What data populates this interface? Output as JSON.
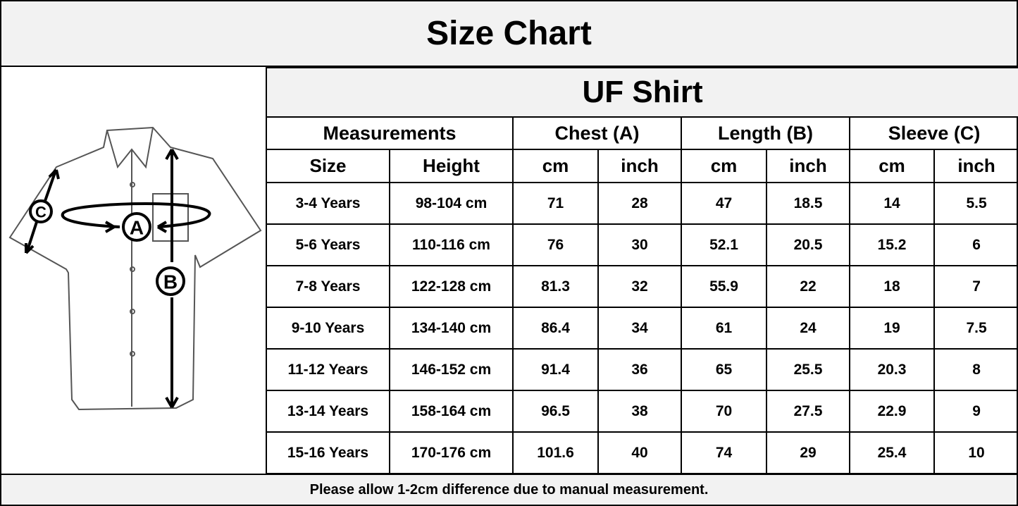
{
  "title": "Size Chart",
  "diagram": {
    "labels": [
      "A",
      "B",
      "C"
    ]
  },
  "table": {
    "title": "UF Shirt",
    "groups": [
      "Measurements",
      "Chest (A)",
      "Length (B)",
      "Sleeve (C)"
    ],
    "columns": [
      "Size",
      "Height",
      "cm",
      "inch",
      "cm",
      "inch",
      "cm",
      "inch"
    ],
    "rows": [
      [
        "3-4 Years",
        "98-104 cm",
        "71",
        "28",
        "47",
        "18.5",
        "14",
        "5.5"
      ],
      [
        "5-6 Years",
        "110-116 cm",
        "76",
        "30",
        "52.1",
        "20.5",
        "15.2",
        "6"
      ],
      [
        "7-8 Years",
        "122-128 cm",
        "81.3",
        "32",
        "55.9",
        "22",
        "18",
        "7"
      ],
      [
        "9-10 Years",
        "134-140 cm",
        "86.4",
        "34",
        "61",
        "24",
        "19",
        "7.5"
      ],
      [
        "11-12 Years",
        "146-152 cm",
        "91.4",
        "36",
        "65",
        "25.5",
        "20.3",
        "8"
      ],
      [
        "13-14 Years",
        "158-164 cm",
        "96.5",
        "38",
        "70",
        "27.5",
        "22.9",
        "9"
      ],
      [
        "15-16 Years",
        "170-176 cm",
        "101.6",
        "40",
        "74",
        "29",
        "25.4",
        "10"
      ]
    ]
  },
  "note": "Please allow 1-2cm difference due to manual measurement."
}
